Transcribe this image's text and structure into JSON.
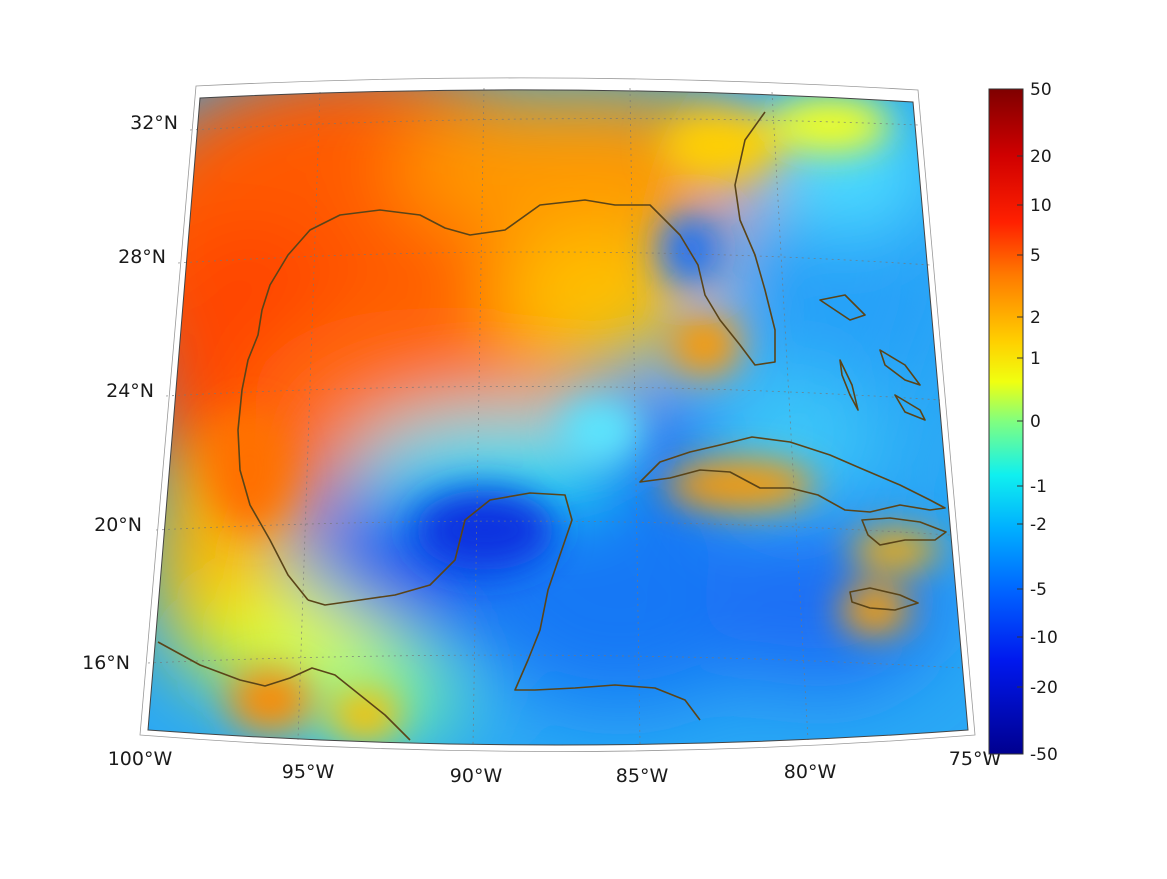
{
  "map": {
    "projection": "conic",
    "region": "Gulf of Mexico and Caribbean",
    "coastline_color": "#5a4418",
    "graticule": "dotted",
    "lat_labels": [
      "32°N",
      "28°N",
      "24°N",
      "20°N",
      "16°N"
    ],
    "lon_labels": [
      "100°W",
      "95°W",
      "90°W",
      "85°W",
      "80°W",
      "75°W"
    ]
  },
  "colorbar": {
    "colormap": "jet",
    "scale": "nonlinear",
    "tick_labels": [
      "50",
      "20",
      "10",
      "5",
      "2",
      "1",
      "0",
      "-1",
      "-2",
      "-5",
      "-10",
      "-20",
      "-50"
    ],
    "colors": [
      "#7f0000",
      "#ff0000",
      "#ff8000",
      "#ffff00",
      "#80ff80",
      "#00ffff",
      "#0080ff",
      "#0000ff",
      "#00008f"
    ]
  }
}
